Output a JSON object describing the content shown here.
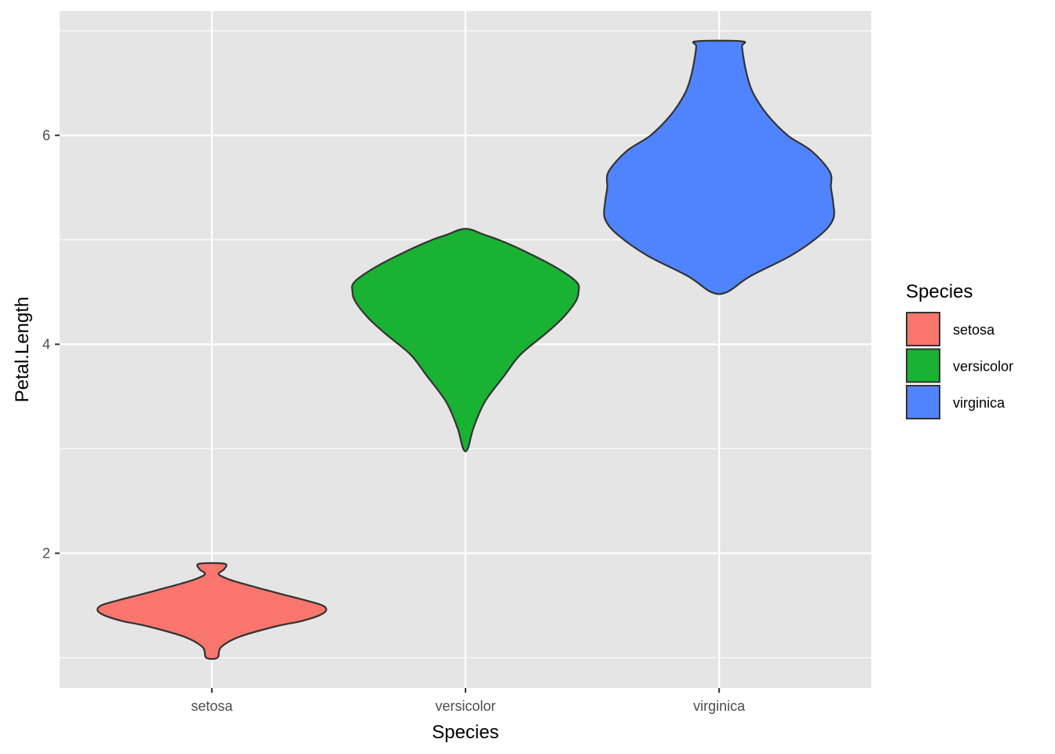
{
  "chart_data": {
    "type": "violin",
    "xlabel": "Species",
    "ylabel": "Petal.Length",
    "categories": [
      "setosa",
      "versicolor",
      "virginica"
    ],
    "y_ticks": [
      2,
      4,
      6
    ],
    "ylim": [
      0.71,
      7.19
    ],
    "grid": true,
    "legend": {
      "title": "Species",
      "position": "right",
      "entries": [
        "setosa",
        "versicolor",
        "virginica"
      ]
    },
    "colors": {
      "setosa": "#F8766D",
      "versicolor": "#19B232",
      "virginica": "#5084FF",
      "panel": "#E5E5E5",
      "grid": "#FFFFFF",
      "outline": "#333333"
    },
    "series": [
      {
        "name": "setosa",
        "range": [
          1.0,
          1.9
        ],
        "profile": [
          [
            1.0,
            0.05
          ],
          [
            1.1,
            0.08
          ],
          [
            1.2,
            0.24
          ],
          [
            1.3,
            0.56
          ],
          [
            1.35,
            0.78
          ],
          [
            1.4,
            0.93
          ],
          [
            1.45,
            1.0
          ],
          [
            1.5,
            0.97
          ],
          [
            1.55,
            0.82
          ],
          [
            1.6,
            0.64
          ],
          [
            1.65,
            0.47
          ],
          [
            1.7,
            0.3
          ],
          [
            1.75,
            0.15
          ],
          [
            1.8,
            0.06
          ],
          [
            1.85,
            0.11
          ],
          [
            1.9,
            0.11
          ]
        ]
      },
      {
        "name": "versicolor",
        "range": [
          3.0,
          5.1
        ],
        "profile": [
          [
            3.0,
            0.02
          ],
          [
            3.2,
            0.07
          ],
          [
            3.45,
            0.17
          ],
          [
            3.7,
            0.34
          ],
          [
            3.9,
            0.48
          ],
          [
            4.1,
            0.7
          ],
          [
            4.25,
            0.85
          ],
          [
            4.4,
            0.96
          ],
          [
            4.5,
            0.99
          ],
          [
            4.6,
            0.97
          ],
          [
            4.75,
            0.77
          ],
          [
            4.9,
            0.5
          ],
          [
            5.0,
            0.29
          ],
          [
            5.05,
            0.16
          ],
          [
            5.1,
            0.04
          ]
        ]
      },
      {
        "name": "virginica",
        "range": [
          4.5,
          6.9
        ],
        "profile": [
          [
            4.5,
            0.07
          ],
          [
            4.65,
            0.27
          ],
          [
            4.85,
            0.63
          ],
          [
            5.05,
            0.89
          ],
          [
            5.2,
            1.0
          ],
          [
            5.35,
            1.0
          ],
          [
            5.5,
            0.98
          ],
          [
            5.65,
            0.97
          ],
          [
            5.85,
            0.81
          ],
          [
            6.0,
            0.6
          ],
          [
            6.2,
            0.42
          ],
          [
            6.4,
            0.3
          ],
          [
            6.55,
            0.25
          ],
          [
            6.7,
            0.22
          ],
          [
            6.85,
            0.2
          ],
          [
            6.9,
            0.2
          ]
        ]
      }
    ]
  }
}
